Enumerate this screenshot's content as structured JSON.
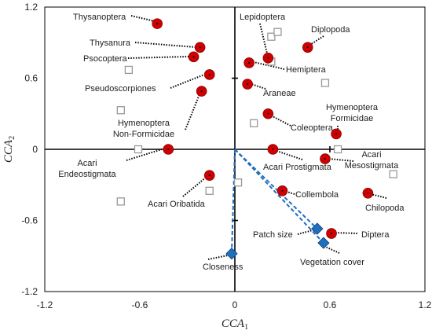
{
  "chart_data": {
    "type": "scatter",
    "title": "",
    "xlabel_main": "CCA",
    "xlabel_sub": "1",
    "ylabel_main": "CCA",
    "ylabel_sub": "2",
    "xlim": [
      -1.2,
      1.2
    ],
    "ylim": [
      -1.2,
      1.2
    ],
    "xticks": [
      "-1.2",
      "-0.6",
      "0",
      "0.6",
      "1.2"
    ],
    "yticks": [
      "1.2",
      "0.6",
      "0",
      "-0.6",
      "-1.2"
    ],
    "grid": false,
    "colors": {
      "taxa": "#cc0000",
      "sites": "#999999",
      "environment": "#1f6fbf"
    },
    "taxa": [
      {
        "name": "Thysanoptera",
        "x": -0.49,
        "y": 1.06
      },
      {
        "name": "Thysanura",
        "x": -0.22,
        "y": 0.86
      },
      {
        "name": "Psocoptera",
        "x": -0.26,
        "y": 0.78
      },
      {
        "name": "Pseudoscorpiones",
        "x": -0.16,
        "y": 0.63
      },
      {
        "name": "Hymenoptera Non-Formicidae",
        "x": -0.21,
        "y": 0.49
      },
      {
        "name": "Acari Endeostigmata",
        "x": -0.42,
        "y": 0.0
      },
      {
        "name": "Acari Oribatida",
        "x": -0.16,
        "y": -0.22
      },
      {
        "name": "Lepidoptera",
        "x": 0.21,
        "y": 0.77
      },
      {
        "name": "Diplopoda",
        "x": 0.46,
        "y": 0.86
      },
      {
        "name": "Hemiptera",
        "x": 0.09,
        "y": 0.73
      },
      {
        "name": "Araneae",
        "x": 0.08,
        "y": 0.55
      },
      {
        "name": "Coleoptera",
        "x": 0.21,
        "y": 0.3
      },
      {
        "name": "Hymenoptera Formicidae",
        "x": 0.64,
        "y": 0.13
      },
      {
        "name": "Acari Prostigmata",
        "x": 0.24,
        "y": 0.0
      },
      {
        "name": "Acari Mesostigmata",
        "x": 0.57,
        "y": -0.08
      },
      {
        "name": "Collembola",
        "x": 0.3,
        "y": -0.35
      },
      {
        "name": "Chilopoda",
        "x": 0.84,
        "y": -0.37
      },
      {
        "name": "Diptera",
        "x": 0.61,
        "y": -0.71
      }
    ],
    "sites": [
      {
        "x": -0.67,
        "y": 0.67
      },
      {
        "x": -0.72,
        "y": 0.33
      },
      {
        "x": -0.61,
        "y": 0.0
      },
      {
        "x": -0.72,
        "y": -0.44
      },
      {
        "x": -0.16,
        "y": -0.35
      },
      {
        "x": 0.02,
        "y": -0.28
      },
      {
        "x": 0.12,
        "y": 0.22
      },
      {
        "x": 0.23,
        "y": 0.95
      },
      {
        "x": 0.27,
        "y": 0.99
      },
      {
        "x": 0.23,
        "y": 0.74
      },
      {
        "x": 0.57,
        "y": 0.56
      },
      {
        "x": 0.65,
        "y": 0.0
      },
      {
        "x": 1.0,
        "y": -0.21
      }
    ],
    "vectors": [
      {
        "name": "Closeness",
        "x": -0.02,
        "y": -0.88
      },
      {
        "name": "Patch size",
        "x": 0.52,
        "y": -0.67
      },
      {
        "name": "Vegetation cover",
        "x": 0.56,
        "y": -0.79
      }
    ]
  }
}
